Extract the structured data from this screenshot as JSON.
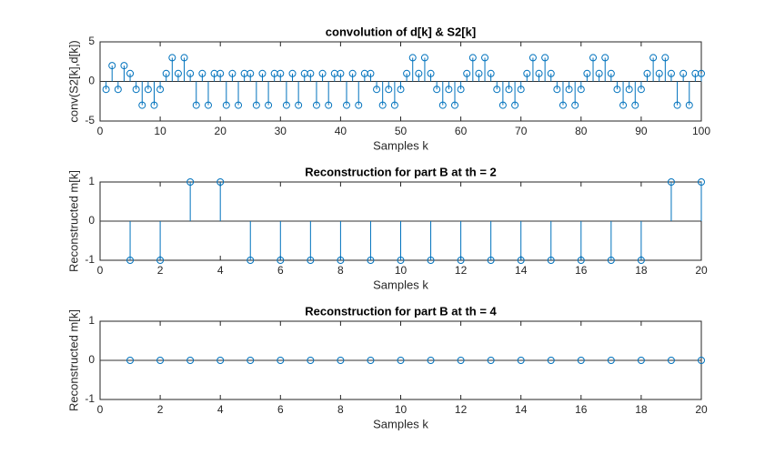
{
  "chart_data": [
    {
      "type": "stem",
      "title": "convolution of d[k] & S2[k]",
      "xlabel": "Samples k",
      "ylabel": "conv(S2[k],d[k])",
      "color": "#0072bd",
      "x": [
        1,
        2,
        3,
        4,
        5,
        6,
        7,
        8,
        9,
        10,
        11,
        12,
        13,
        14,
        15,
        16,
        17,
        18,
        19,
        20,
        21,
        22,
        23,
        24,
        25,
        26,
        27,
        28,
        29,
        30,
        31,
        32,
        33,
        34,
        35,
        36,
        37,
        38,
        39,
        40,
        41,
        42,
        43,
        44,
        45,
        46,
        47,
        48,
        49,
        50,
        51,
        52,
        53,
        54,
        55,
        56,
        57,
        58,
        59,
        60,
        61,
        62,
        63,
        64,
        65,
        66,
        67,
        68,
        69,
        70,
        71,
        72,
        73,
        74,
        75,
        76,
        77,
        78,
        79,
        80,
        81,
        82,
        83,
        84,
        85,
        86,
        87,
        88,
        89,
        90,
        91,
        92,
        93,
        94,
        95,
        96,
        97,
        98,
        99,
        100
      ],
      "values": [
        -1,
        2,
        -1,
        2,
        1,
        -1,
        -3,
        -1,
        -3,
        -1,
        1,
        3,
        1,
        3,
        1,
        -3,
        1,
        -3,
        1,
        1,
        -3,
        1,
        -3,
        1,
        1,
        -3,
        1,
        -3,
        1,
        1,
        -3,
        1,
        -3,
        1,
        1,
        -3,
        1,
        -3,
        1,
        1,
        -3,
        1,
        -3,
        1,
        1,
        -1,
        -3,
        -1,
        -3,
        -1,
        1,
        3,
        1,
        3,
        1,
        -1,
        -3,
        -1,
        -3,
        -1,
        1,
        3,
        1,
        3,
        1,
        -1,
        -3,
        -1,
        -3,
        -1,
        1,
        3,
        1,
        3,
        1,
        -1,
        -3,
        -1,
        -3,
        -1,
        1,
        3,
        1,
        3,
        1,
        -1,
        -3,
        -1,
        -3,
        -1,
        1,
        3,
        1,
        3,
        1,
        -3,
        1,
        -3,
        1,
        1
      ],
      "xlim": [
        0,
        100
      ],
      "xticks": [
        0,
        10,
        20,
        30,
        40,
        50,
        60,
        70,
        80,
        90,
        100
      ],
      "ylim": [
        -5,
        5
      ],
      "yticks": [
        -5,
        0,
        5
      ]
    },
    {
      "type": "stem",
      "title": "Reconstruction for part B at th = 2",
      "xlabel": "Samples k",
      "ylabel": "Reconstructed m[k]",
      "color": "#0072bd",
      "x": [
        1,
        2,
        3,
        4,
        5,
        6,
        7,
        8,
        9,
        10,
        11,
        12,
        13,
        14,
        15,
        16,
        17,
        18,
        19,
        20
      ],
      "values": [
        -1,
        -1,
        1,
        1,
        -1,
        -1,
        -1,
        -1,
        -1,
        -1,
        -1,
        -1,
        -1,
        -1,
        -1,
        -1,
        -1,
        -1,
        1,
        1
      ],
      "xlim": [
        0,
        20
      ],
      "xticks": [
        0,
        2,
        4,
        6,
        8,
        10,
        12,
        14,
        16,
        18,
        20
      ],
      "ylim": [
        -1,
        1
      ],
      "yticks": [
        -1,
        0,
        1
      ]
    },
    {
      "type": "stem",
      "title": "Reconstruction for part B at th = 4",
      "xlabel": "Samples k",
      "ylabel": "Reconstructed m[k]",
      "color": "#0072bd",
      "x": [
        1,
        2,
        3,
        4,
        5,
        6,
        7,
        8,
        9,
        10,
        11,
        12,
        13,
        14,
        15,
        16,
        17,
        18,
        19,
        20
      ],
      "values": [
        0,
        0,
        0,
        0,
        0,
        0,
        0,
        0,
        0,
        0,
        0,
        0,
        0,
        0,
        0,
        0,
        0,
        0,
        0,
        0
      ],
      "xlim": [
        0,
        20
      ],
      "xticks": [
        0,
        2,
        4,
        6,
        8,
        10,
        12,
        14,
        16,
        18,
        20
      ],
      "ylim": [
        -1,
        1
      ],
      "yticks": [
        -1,
        0,
        1
      ]
    }
  ]
}
